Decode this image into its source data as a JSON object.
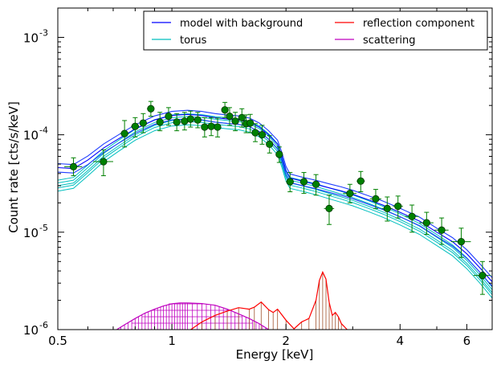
{
  "chart_data": {
    "type": "scatter",
    "xlabel": "Energy [keV]",
    "ylabel": "Count rate [cts/s/keV]",
    "xscale": "log",
    "yscale": "log",
    "xlim": [
      0.5,
      7.0
    ],
    "ylim": [
      1e-06,
      0.002
    ],
    "xticks": [
      {
        "value": 0.5,
        "label": "0.5"
      },
      {
        "value": 1,
        "label": "1"
      },
      {
        "value": 2,
        "label": "2"
      },
      {
        "value": 4,
        "label": "4"
      },
      {
        "value": 6,
        "label": "6"
      }
    ],
    "yticks": [
      {
        "value": 1e-06,
        "base": "10",
        "exp": "-6"
      },
      {
        "value": 1e-05,
        "base": "10",
        "exp": "-5"
      },
      {
        "value": 0.0001,
        "base": "10",
        "exp": "-4"
      },
      {
        "value": 0.001,
        "base": "10",
        "exp": "-3"
      }
    ],
    "legend": {
      "location": "top-right",
      "entries": [
        {
          "label": "model with background",
          "color": "#0000ff"
        },
        {
          "label": "reflection component",
          "color": "#ff0000"
        },
        {
          "label": "torus",
          "color": "#00bfbf"
        },
        {
          "label": "scattering",
          "color": "#bf00bf"
        }
      ]
    },
    "data_points": {
      "color": "#008000",
      "points": [
        {
          "x": 0.55,
          "y": 4.7e-05,
          "xerr": 0.03,
          "ylo": 3.8e-05,
          "yhi": 5.8e-05
        },
        {
          "x": 0.66,
          "y": 5.3e-05,
          "xerr": 0.04,
          "ylo": 3.8e-05,
          "yhi": 7e-05
        },
        {
          "x": 0.75,
          "y": 0.000103,
          "xerr": 0.02,
          "ylo": 7.5e-05,
          "yhi": 0.00014
        },
        {
          "x": 0.8,
          "y": 0.000122,
          "xerr": 0.02,
          "ylo": 9.5e-05,
          "yhi": 0.00015
        },
        {
          "x": 0.84,
          "y": 0.000132,
          "xerr": 0.02,
          "ylo": 0.000105,
          "yhi": 0.000165
        },
        {
          "x": 0.88,
          "y": 0.000185,
          "xerr": 0.02,
          "ylo": 0.000155,
          "yhi": 0.00022
        },
        {
          "x": 0.93,
          "y": 0.000135,
          "xerr": 0.02,
          "ylo": 0.00011,
          "yhi": 0.00017
        },
        {
          "x": 0.98,
          "y": 0.000155,
          "xerr": 0.02,
          "ylo": 0.000125,
          "yhi": 0.00019
        },
        {
          "x": 1.03,
          "y": 0.000135,
          "xerr": 0.02,
          "ylo": 0.00011,
          "yhi": 0.000165
        },
        {
          "x": 1.08,
          "y": 0.000138,
          "xerr": 0.02,
          "ylo": 0.000112,
          "yhi": 0.00017
        },
        {
          "x": 1.12,
          "y": 0.000145,
          "xerr": 0.02,
          "ylo": 0.00012,
          "yhi": 0.000175
        },
        {
          "x": 1.17,
          "y": 0.000142,
          "xerr": 0.02,
          "ylo": 0.000118,
          "yhi": 0.00017
        },
        {
          "x": 1.22,
          "y": 0.00012,
          "xerr": 0.02,
          "ylo": 9.5e-05,
          "yhi": 0.00015
        },
        {
          "x": 1.27,
          "y": 0.000122,
          "xerr": 0.02,
          "ylo": 9.8e-05,
          "yhi": 0.00015
        },
        {
          "x": 1.32,
          "y": 0.00012,
          "xerr": 0.02,
          "ylo": 9.5e-05,
          "yhi": 0.000148
        },
        {
          "x": 1.38,
          "y": 0.00018,
          "xerr": 0.02,
          "ylo": 0.00015,
          "yhi": 0.000215
        },
        {
          "x": 1.42,
          "y": 0.000155,
          "xerr": 0.02,
          "ylo": 0.000125,
          "yhi": 0.00019
        },
        {
          "x": 1.47,
          "y": 0.000138,
          "xerr": 0.02,
          "ylo": 0.00011,
          "yhi": 0.00017
        },
        {
          "x": 1.53,
          "y": 0.00015,
          "xerr": 0.02,
          "ylo": 0.00012,
          "yhi": 0.000185
        },
        {
          "x": 1.57,
          "y": 0.00013,
          "xerr": 0.02,
          "ylo": 0.000105,
          "yhi": 0.00016
        },
        {
          "x": 1.61,
          "y": 0.000132,
          "xerr": 0.02,
          "ylo": 0.000105,
          "yhi": 0.000162
        },
        {
          "x": 1.66,
          "y": 0.000105,
          "xerr": 0.02,
          "ylo": 8.5e-05,
          "yhi": 0.00013
        },
        {
          "x": 1.73,
          "y": 0.0001,
          "xerr": 0.03,
          "ylo": 8e-05,
          "yhi": 0.000125
        },
        {
          "x": 1.81,
          "y": 8e-05,
          "xerr": 0.03,
          "ylo": 6.5e-05,
          "yhi": 9.8e-05
        },
        {
          "x": 1.92,
          "y": 6.3e-05,
          "xerr": 0.04,
          "ylo": 5.2e-05,
          "yhi": 7.5e-05
        },
        {
          "x": 2.05,
          "y": 3.3e-05,
          "xerr": 0.05,
          "ylo": 2.6e-05,
          "yhi": 4.1e-05
        },
        {
          "x": 2.23,
          "y": 3.3e-05,
          "xerr": 0.05,
          "ylo": 2.5e-05,
          "yhi": 4.1e-05
        },
        {
          "x": 2.4,
          "y": 3.1e-05,
          "xerr": 0.06,
          "ylo": 2.4e-05,
          "yhi": 3.9e-05
        },
        {
          "x": 2.6,
          "y": 1.75e-05,
          "xerr": 0.08,
          "ylo": 1.2e-05,
          "yhi": 2.4e-05
        },
        {
          "x": 2.95,
          "y": 2.5e-05,
          "xerr": 0.12,
          "ylo": 2e-05,
          "yhi": 3.1e-05
        },
        {
          "x": 3.15,
          "y": 3.35e-05,
          "xerr": 0.08,
          "ylo": 2.6e-05,
          "yhi": 4.2e-05
        },
        {
          "x": 3.45,
          "y": 2.2e-05,
          "xerr": 0.12,
          "ylo": 1.75e-05,
          "yhi": 2.75e-05
        },
        {
          "x": 3.7,
          "y": 1.75e-05,
          "xerr": 0.12,
          "ylo": 1.3e-05,
          "yhi": 2.3e-05
        },
        {
          "x": 3.95,
          "y": 1.85e-05,
          "xerr": 0.12,
          "ylo": 1.4e-05,
          "yhi": 2.35e-05
        },
        {
          "x": 4.3,
          "y": 1.45e-05,
          "xerr": 0.18,
          "ylo": 1e-05,
          "yhi": 1.9e-05
        },
        {
          "x": 4.7,
          "y": 1.25e-05,
          "xerr": 0.2,
          "ylo": 9.5e-06,
          "yhi": 1.6e-05
        },
        {
          "x": 5.15,
          "y": 1.05e-05,
          "xerr": 0.22,
          "ylo": 7.5e-06,
          "yhi": 1.4e-05
        },
        {
          "x": 5.8,
          "y": 8e-06,
          "xerr": 0.35,
          "ylo": 5.5e-06,
          "yhi": 1.1e-05
        },
        {
          "x": 6.6,
          "y": 3.6e-06,
          "xerr": 0.35,
          "ylo": 2.3e-06,
          "yhi": 5e-06
        }
      ]
    },
    "series": [
      {
        "name": "model with background",
        "color": "#0000ff",
        "x": [
          0.5,
          0.55,
          0.6,
          0.66,
          0.72,
          0.8,
          0.9,
          1.0,
          1.1,
          1.2,
          1.3,
          1.4,
          1.5,
          1.6,
          1.7,
          1.8,
          1.9,
          1.95,
          2.0,
          2.05,
          2.2,
          2.4,
          2.6,
          2.8,
          3.0,
          3.3,
          3.6,
          4.0,
          4.5,
          5.0,
          5.5,
          6.0,
          6.5,
          7.0
        ],
        "y": [
          4.6e-05,
          4.5e-05,
          5.5e-05,
          7.3e-05,
          9e-05,
          0.000115,
          0.000142,
          0.000158,
          0.000162,
          0.000158,
          0.00015,
          0.000145,
          0.000142,
          0.000135,
          0.00012,
          0.0001,
          8e-05,
          6e-05,
          4.3e-05,
          3.6e-05,
          3.35e-05,
          3.1e-05,
          2.85e-05,
          2.65e-05,
          2.45e-05,
          2.15e-05,
          1.9e-05,
          1.6e-05,
          1.3e-05,
          1e-05,
          8e-06,
          6e-06,
          4.3e-06,
          3.1e-06
        ]
      },
      {
        "name": "torus",
        "color": "#00bfbf",
        "x": [
          0.5,
          0.55,
          0.6,
          0.66,
          0.72,
          0.8,
          0.9,
          1.0,
          1.1,
          1.2,
          1.3,
          1.4,
          1.5,
          1.6,
          1.7,
          1.8,
          1.9,
          1.95,
          2.0,
          2.05,
          2.2,
          2.4,
          2.6,
          2.8,
          3.0,
          3.3,
          3.6,
          4.0,
          4.5,
          5.0,
          5.5,
          6.0,
          6.5,
          7.0
        ],
        "y": [
          3e-05,
          3.2e-05,
          4.3e-05,
          6e-05,
          7.6e-05,
          0.0001,
          0.000125,
          0.00014,
          0.000144,
          0.000141,
          0.000135,
          0.000131,
          0.000128,
          0.000121,
          0.000108,
          9e-05,
          7.1e-05,
          5.3e-05,
          3.8e-05,
          3.2e-05,
          3e-05,
          2.75e-05,
          2.5e-05,
          2.3e-05,
          2.12e-05,
          1.85e-05,
          1.62e-05,
          1.35e-05,
          1.08e-05,
          8.3e-06,
          6.5e-06,
          4.8e-06,
          3.4e-06,
          2.4e-06
        ]
      },
      {
        "name": "reflection component",
        "color": "#ff0000",
        "x": [
          1.1,
          1.2,
          1.3,
          1.4,
          1.5,
          1.6,
          1.65,
          1.72,
          1.8,
          1.85,
          1.9,
          2.0,
          2.1,
          2.2,
          2.3,
          2.4,
          2.45,
          2.5,
          2.55,
          2.6,
          2.65,
          2.7,
          2.75,
          2.8,
          2.9,
          3.0
        ],
        "y": [
          9.5e-07,
          1.2e-06,
          1.4e-06,
          1.55e-06,
          1.68e-06,
          1.62e-06,
          1.7e-06,
          1.92e-06,
          1.6e-06,
          1.5e-06,
          1.62e-06,
          1.25e-06,
          1.02e-06,
          1.2e-06,
          1.3e-06,
          2e-06,
          3.2e-06,
          3.9e-06,
          3.3e-06,
          1.9e-06,
          1.4e-06,
          1.5e-06,
          1.35e-06,
          1.15e-06,
          1e-06,
          9.5e-07
        ]
      },
      {
        "name": "scattering",
        "color": "#bf00bf",
        "x": [
          0.7,
          0.75,
          0.8,
          0.85,
          0.9,
          0.95,
          1.0,
          1.05,
          1.1,
          1.2,
          1.3,
          1.4,
          1.5,
          1.6,
          1.7,
          1.8
        ],
        "y": [
          9.5e-07,
          1.12e-06,
          1.3e-06,
          1.48e-06,
          1.62e-06,
          1.75e-06,
          1.84e-06,
          1.88e-06,
          1.88e-06,
          1.85e-06,
          1.78e-06,
          1.62e-06,
          1.45e-06,
          1.3e-06,
          1.15e-06,
          1e-06
        ]
      }
    ]
  }
}
